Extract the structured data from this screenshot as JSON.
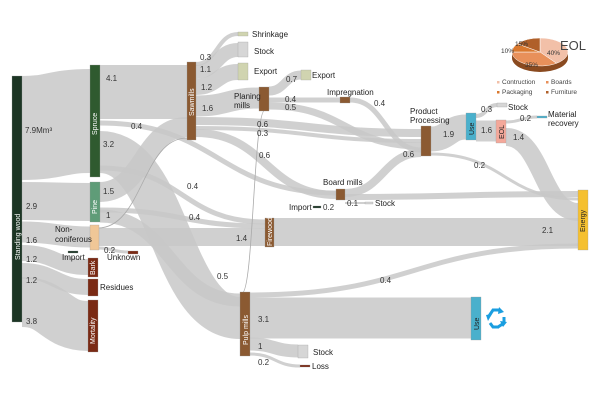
{
  "colors": {
    "link": "#c8c8c8",
    "standing_wood": "#1c3524",
    "spruce": "#2f5a2f",
    "pine": "#5f9c78",
    "non_coniferous": "#f0c797",
    "loss_nodes": "#7a2a14",
    "process": "#8b5a32",
    "export": "#d0d4b0",
    "stock": "#d6d6d6",
    "use": "#4ab0cc",
    "eol": "#f4a89a",
    "energy": "#f5c030",
    "recycle": "#1a9ee0"
  },
  "nodes": {
    "standing_wood": "Standing wood",
    "spruce": "Spruce",
    "pine": "Pine",
    "non_coniferous_1": "Non-",
    "non_coniferous_2": "coniferous",
    "import": "Import",
    "unknown": "Unknown",
    "bark": "Bark",
    "residues": "Residues",
    "mortality": "Mortality",
    "sawmills": "Sawmills",
    "shrinkage": "Shrinkage",
    "stock": "Stock",
    "export": "Export",
    "planing_1": "Planing",
    "planing_2": "mills",
    "impregnation": "Impregnation",
    "product_1": "Product",
    "product_2": "Processing",
    "use": "Use",
    "eol": "EOL",
    "material_1": "Material",
    "material_2": "recovery",
    "board_mills": "Board mills",
    "firewood": "Firewood",
    "energy": "Energy",
    "pulp_mills": "Pulp mills",
    "loss": "Loss"
  },
  "values": {
    "standing": "7.9Mm³",
    "pine_in": "2.9",
    "nonconif_in": "1.6",
    "bark_in": "1.2",
    "residues_in": "1.2",
    "mortality_in": "3.8",
    "spruce_saw": "4.1",
    "spruce_board": "0.4",
    "spruce_pulp": "3.2",
    "pine_saw": "1.5",
    "pine_pulp": "1",
    "spruce_fire": "0.4",
    "pine_fire": "0.4",
    "nonconif_fire": "1.4",
    "unknown": "0.2",
    "shrinkage": "0.3",
    "stock": "1.1",
    "export": "1.2",
    "planing": "1.6",
    "saw_pp1": "0.6",
    "saw_pp2": "0.3",
    "saw_board": "0.6",
    "plan_export": "0.7",
    "plan_impreg": "0.4",
    "plan_pp": "0.5",
    "impreg_pp": "0.4",
    "board_pp": "0.6",
    "pp_use": "1.9",
    "pp_energy": "0.2",
    "use_stock": "0.3",
    "use_eol": "1.6",
    "eol_material": "0.2",
    "eol_energy": "1.4",
    "board_import": "0.2",
    "board_stock": "0.1",
    "fire_energy": "2.1",
    "pulp_in": "0.5",
    "pulp_energy": "0.4",
    "pulp_use": "3.1",
    "pulp_stock": "1",
    "pulp_loss": "0.2"
  },
  "pie": {
    "title": "EOL",
    "slices": [
      {
        "label": "Contruction",
        "percent": 40,
        "text": "40%",
        "color": "#f2c0a8"
      },
      {
        "label": "Boards",
        "percent": 35,
        "text": "35%",
        "color": "#e8905a"
      },
      {
        "label": "Packaging",
        "percent": 10,
        "text": "10%",
        "color": "#d9782e"
      },
      {
        "label": "Furniture",
        "percent": 15,
        "text": "15%",
        "color": "#b0602a"
      }
    ]
  },
  "icons": {
    "recycle": "recycle-icon"
  }
}
